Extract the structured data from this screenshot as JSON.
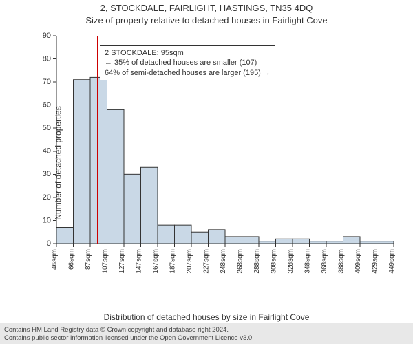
{
  "title_main": "2, STOCKDALE, FAIRLIGHT, HASTINGS, TN35 4DQ",
  "title_sub": "Size of property relative to detached houses in Fairlight Cove",
  "ylabel": "Number of detached properties",
  "xlabel": "Distribution of detached houses by size in Fairlight Cove",
  "credit_line1": "Contains HM Land Registry data © Crown copyright and database right 2024.",
  "credit_line2": "Contains public sector information licensed under the Open Government Licence v3.0.",
  "annotation": {
    "l1": "2 STOCKDALE: 95sqm",
    "l2": "← 35% of detached houses are smaller (107)",
    "l3": "64% of semi-detached houses are larger (195) →"
  },
  "chart": {
    "type": "histogram",
    "background_color": "#ffffff",
    "bar_fill": "#c9d8e6",
    "bar_stroke": "#333333",
    "marker_color": "#cc0000",
    "ylim": [
      0,
      90
    ],
    "ytick_step": 10,
    "x_tick_labels": [
      "46sqm",
      "66sqm",
      "87sqm",
      "107sqm",
      "127sqm",
      "147sqm",
      "167sqm",
      "187sqm",
      "207sqm",
      "227sqm",
      "248sqm",
      "268sqm",
      "288sqm",
      "308sqm",
      "328sqm",
      "348sqm",
      "368sqm",
      "388sqm",
      "409sqm",
      "429sqm",
      "449sqm"
    ],
    "values": [
      7,
      71,
      72,
      58,
      30,
      33,
      8,
      8,
      5,
      6,
      3,
      3,
      1,
      2,
      2,
      1,
      1,
      3,
      1,
      1
    ],
    "marker_value": 95,
    "x_range": [
      46,
      449
    ]
  }
}
